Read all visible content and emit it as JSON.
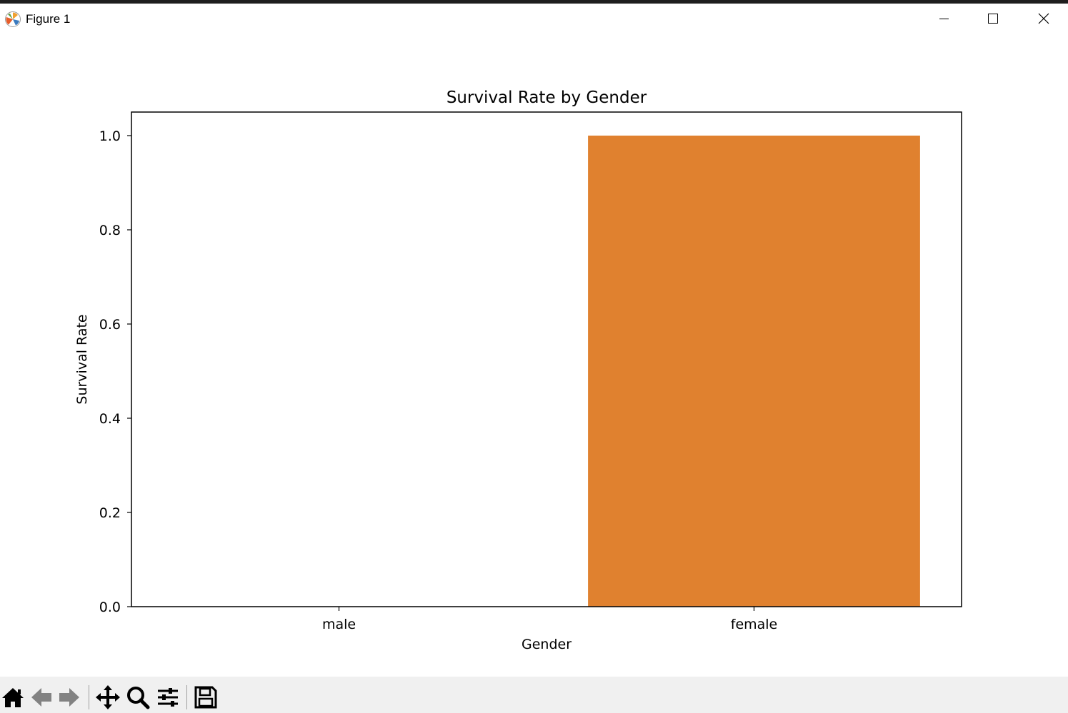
{
  "window": {
    "title": "Figure 1"
  },
  "colors": {
    "bar_female": "#e0812f",
    "axes": "#000000",
    "toolbar_bg": "#f0f0f0"
  },
  "toolbar": {
    "icons": [
      "home-icon",
      "back-arrow-icon",
      "forward-arrow-icon",
      "pan-move-icon",
      "zoom-magnifier-icon",
      "configure-subplots-icon",
      "save-floppy-icon"
    ]
  },
  "chart_data": {
    "type": "bar",
    "title": "Survival Rate by Gender",
    "xlabel": "Gender",
    "ylabel": "Survival Rate",
    "categories": [
      "male",
      "female"
    ],
    "values": [
      0.0,
      1.0
    ],
    "ylim": [
      0,
      1.05
    ],
    "yticks": [
      0.0,
      0.2,
      0.4,
      0.6,
      0.8,
      1.0
    ],
    "ytick_labels": [
      "0.0",
      "0.2",
      "0.4",
      "0.6",
      "0.8",
      "1.0"
    ],
    "grid": false
  }
}
